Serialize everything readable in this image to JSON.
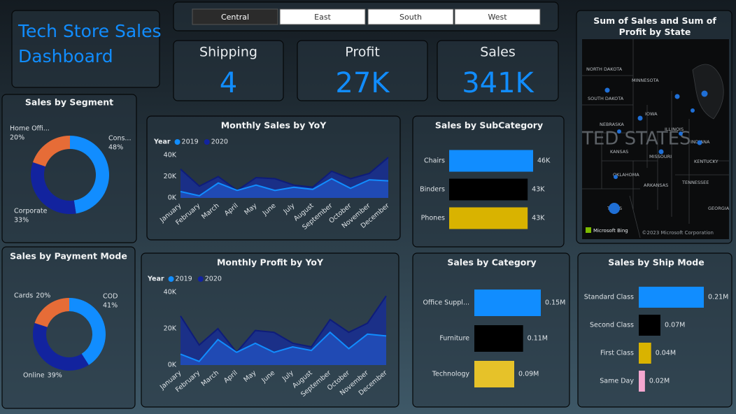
{
  "title": "Tech Store Sales Dashboard",
  "slicer": {
    "options": [
      "Central",
      "East",
      "South",
      "West"
    ],
    "selected": 0
  },
  "kpis": [
    {
      "label": "Shipping",
      "value": "4"
    },
    {
      "label": "Profit",
      "value": "27K"
    },
    {
      "label": "Sales",
      "value": "341K"
    }
  ],
  "map": {
    "title": "Sum of Sales and Sum of Profit by State",
    "watermark": "TED STATES",
    "labels": [
      "NORTH DAKOTA",
      "MINNESOTA",
      "SOUTH DAKOTA",
      "IOWA",
      "NEBRASKA",
      "ILLINOIS",
      "INDIANA",
      "KANSAS",
      "MISSOURI",
      "KENTUCKY",
      "OKLAHOMA",
      "ARKANSAS",
      "TENNESSEE",
      "GEORGIA",
      "TEXAS"
    ],
    "credit": "Microsoft Bing",
    "copyright": "©2023 Microsoft Corporation"
  },
  "chart_data": [
    {
      "type": "donut",
      "title": "Sales by Segment",
      "categories": [
        "Cons...",
        "Corporate",
        "Home Offi..."
      ],
      "values": [
        48,
        33,
        20
      ],
      "value_labels": [
        "48%",
        "33%",
        "20%"
      ],
      "colors": [
        "#118dff",
        "#12239e",
        "#e66c37"
      ]
    },
    {
      "type": "donut",
      "title": "Sales by Payment Mode",
      "categories": [
        "COD",
        "Online",
        "Cards"
      ],
      "values": [
        41,
        39,
        20
      ],
      "value_labels": [
        "41%",
        "39%",
        "20%"
      ],
      "colors": [
        "#118dff",
        "#12239e",
        "#e66c37"
      ]
    },
    {
      "type": "area",
      "title": "Monthly Sales by YoY",
      "legend_title": "Year",
      "categories": [
        "January",
        "February",
        "March",
        "April",
        "May",
        "June",
        "July",
        "August",
        "September",
        "October",
        "November",
        "December"
      ],
      "series": [
        {
          "name": "2019",
          "color": "#118dff",
          "values": [
            6000,
            2000,
            14000,
            7000,
            12000,
            7000,
            10000,
            8000,
            18000,
            9000,
            17000,
            16000
          ]
        },
        {
          "name": "2020",
          "color": "#12239e",
          "values": [
            27000,
            11000,
            20000,
            7000,
            19000,
            18000,
            12000,
            10000,
            25000,
            18000,
            23000,
            38000
          ]
        }
      ],
      "ylim": [
        0,
        40000
      ],
      "yticks": [
        {
          "value": 0,
          "label": "0K"
        },
        {
          "value": 20000,
          "label": "20K"
        },
        {
          "value": 40000,
          "label": "40K"
        }
      ]
    },
    {
      "type": "area",
      "title": "Monthly Profit by YoY",
      "legend_title": "Year",
      "categories": [
        "January",
        "February",
        "March",
        "April",
        "May",
        "June",
        "July",
        "August",
        "September",
        "October",
        "November",
        "December"
      ],
      "series": [
        {
          "name": "2019",
          "color": "#118dff",
          "values": [
            6000,
            2000,
            14000,
            7000,
            12000,
            7000,
            10000,
            8000,
            18000,
            9000,
            17000,
            16000
          ]
        },
        {
          "name": "2020",
          "color": "#12239e",
          "values": [
            27000,
            11000,
            20000,
            7000,
            19000,
            18000,
            12000,
            10000,
            25000,
            18000,
            23000,
            38000
          ]
        }
      ],
      "ylim": [
        0,
        40000
      ],
      "yticks": [
        {
          "value": 0,
          "label": "0K"
        },
        {
          "value": 20000,
          "label": "20K"
        },
        {
          "value": 40000,
          "label": "40K"
        }
      ]
    },
    {
      "type": "hbar",
      "title": "Sales by SubCategory",
      "categories": [
        "Chairs",
        "Binders",
        "Phones"
      ],
      "values": [
        46000,
        43000,
        43000
      ],
      "value_labels": [
        "46K",
        "43K",
        "43K"
      ],
      "colors": [
        "#118dff",
        "#000000",
        "#d9b300"
      ]
    },
    {
      "type": "hbar",
      "title": "Sales by Category",
      "categories": [
        "Office Suppl...",
        "Furniture",
        "Technology"
      ],
      "values": [
        150000,
        110000,
        90000
      ],
      "value_labels": [
        "0.15M",
        "0.11M",
        "0.09M"
      ],
      "colors": [
        "#118dff",
        "#000000",
        "#e6c229"
      ]
    },
    {
      "type": "hbar",
      "title": "Sales by Ship Mode",
      "categories": [
        "Standard Class",
        "Second Class",
        "First Class",
        "Same Day"
      ],
      "values": [
        210000,
        70000,
        40000,
        20000
      ],
      "value_labels": [
        "0.21M",
        "0.07M",
        "0.04M",
        "0.02M"
      ],
      "colors": [
        "#118dff",
        "#000000",
        "#d9b300",
        "#f4a7d0"
      ]
    }
  ]
}
